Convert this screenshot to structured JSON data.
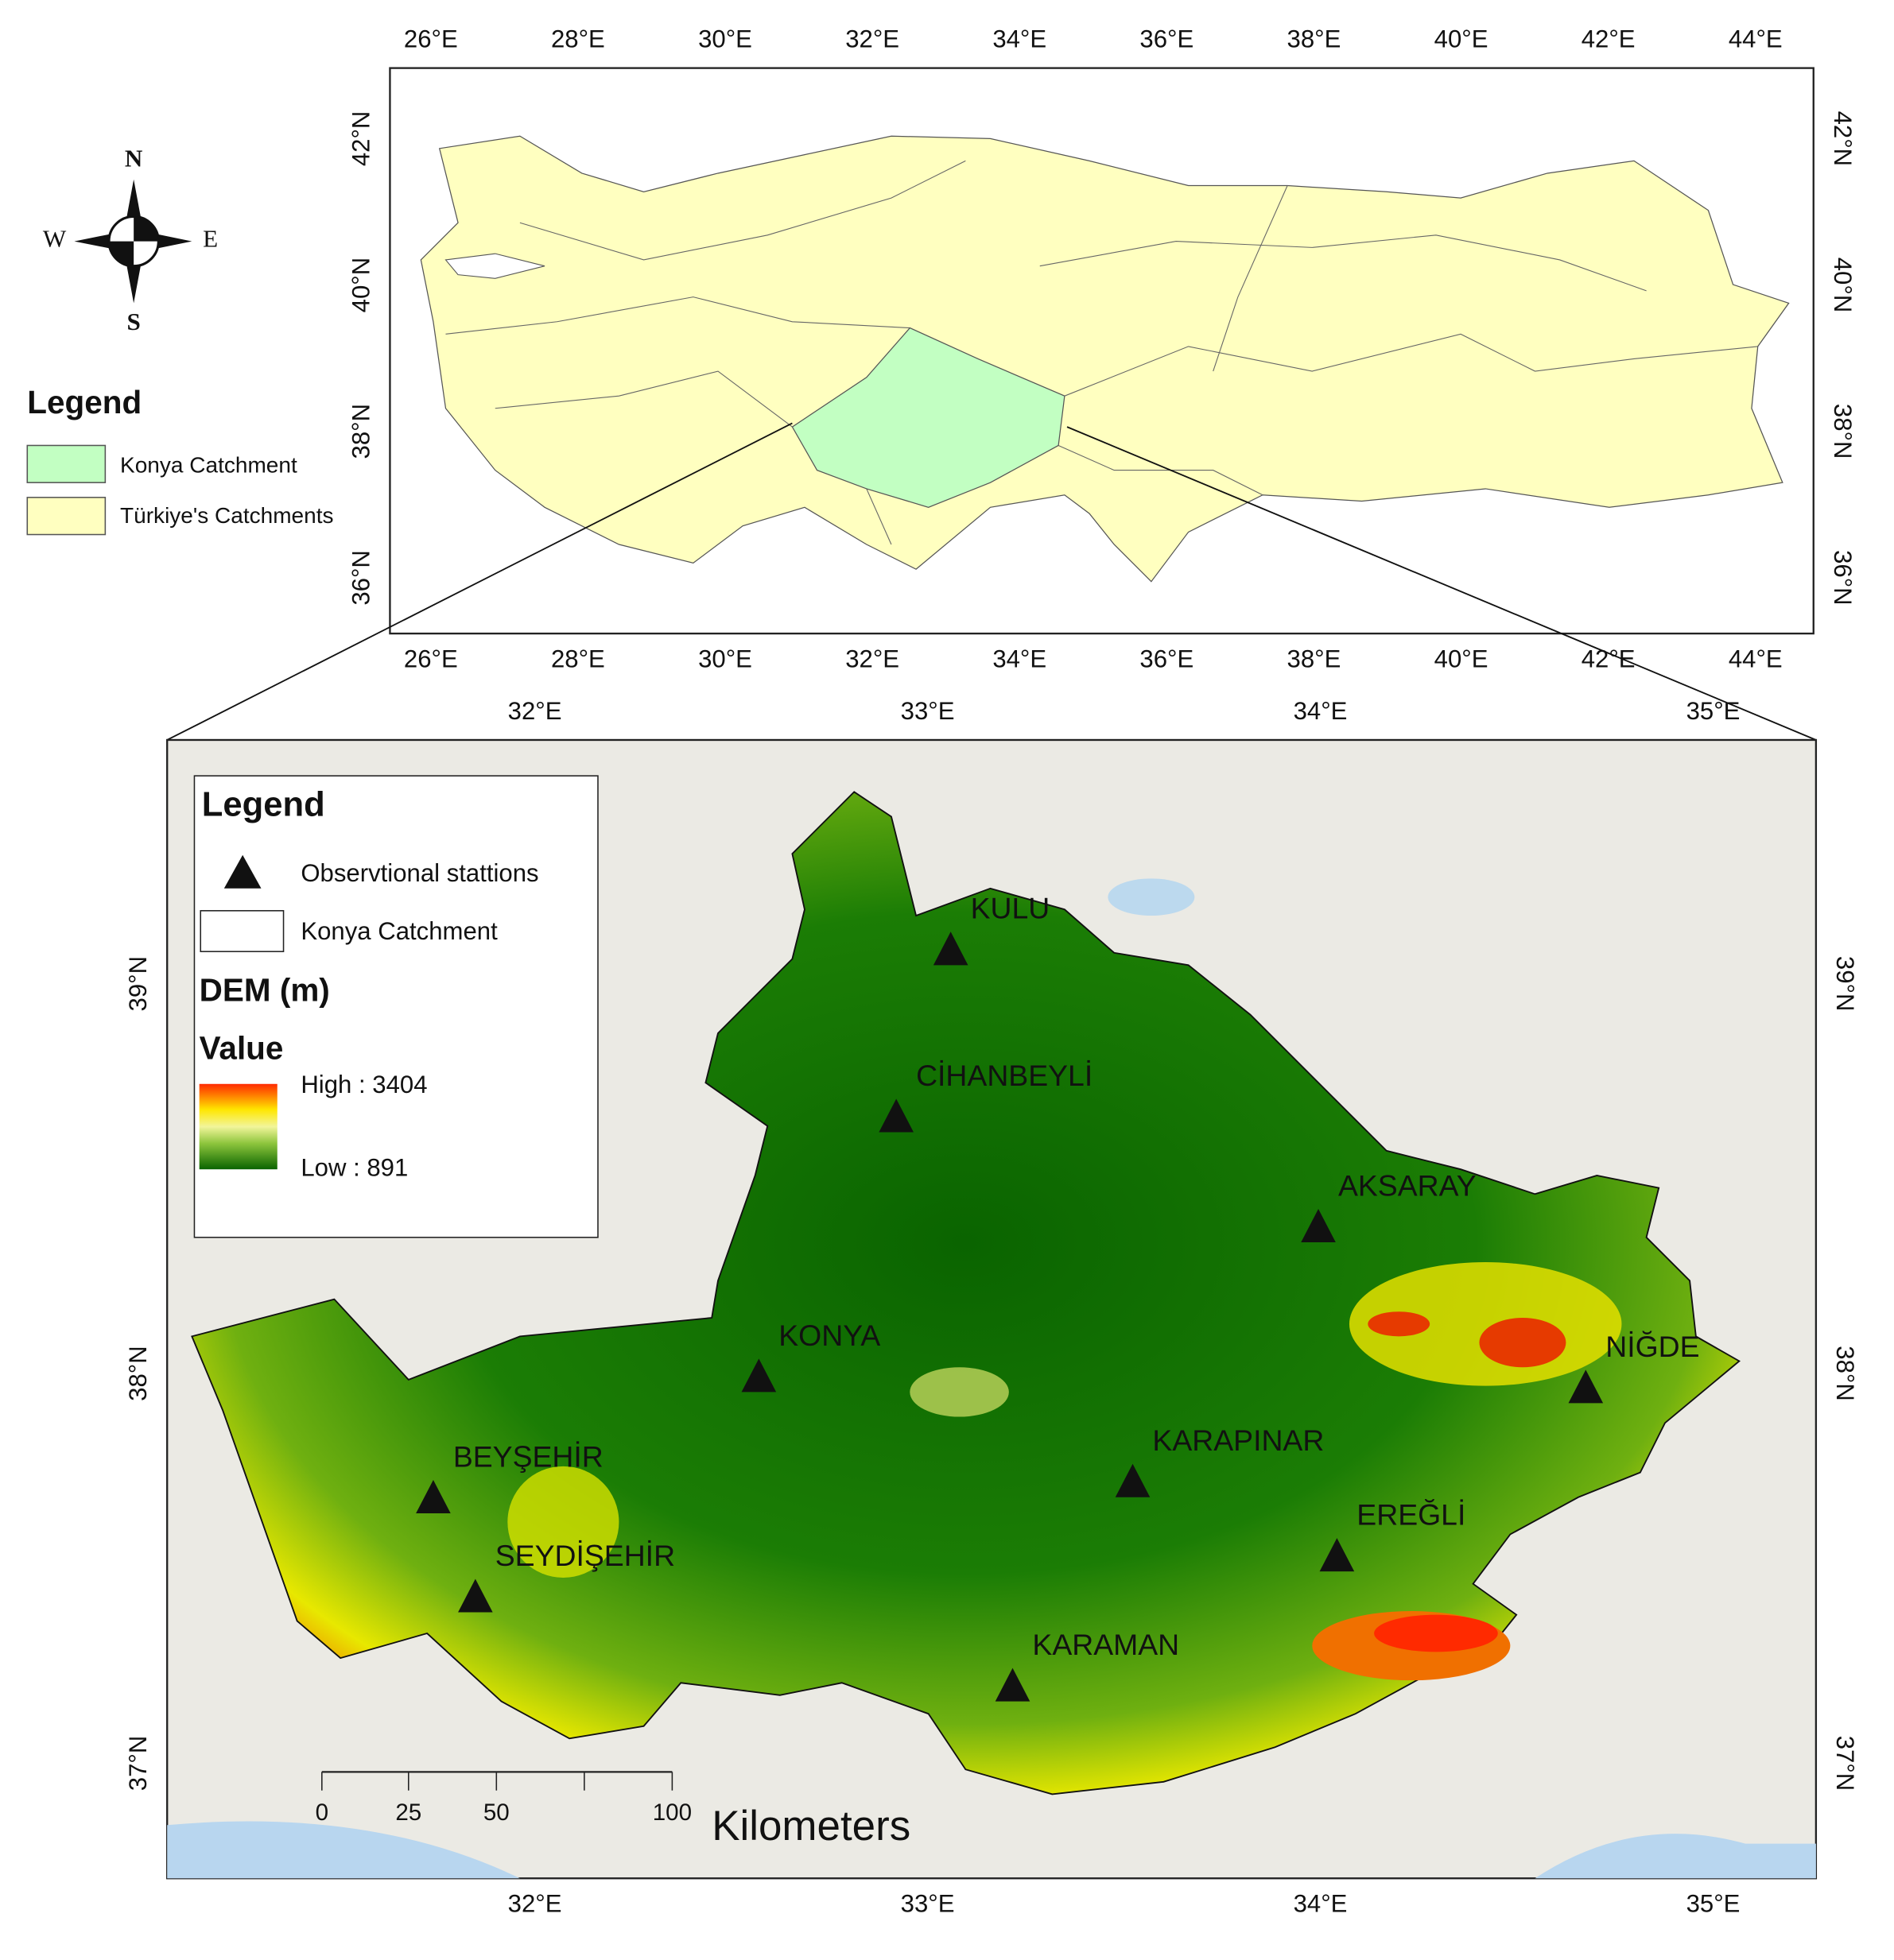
{
  "overview_map": {
    "x_ticks": [
      "26°E",
      "28°E",
      "30°E",
      "32°E",
      "34°E",
      "36°E",
      "38°E",
      "40°E",
      "42°E",
      "44°E"
    ],
    "y_ticks": [
      "42°N",
      "40°N",
      "38°N",
      "36°N"
    ],
    "legend": {
      "title": "Legend",
      "items": [
        "Konya Catchment",
        "Türkiye's Catchments"
      ]
    }
  },
  "compass": {
    "n": "N",
    "s": "S",
    "e": "E",
    "w": "W"
  },
  "detail_map": {
    "x_ticks": [
      "32°E",
      "33°E",
      "34°E",
      "35°E"
    ],
    "y_ticks": [
      "39°N",
      "38°N",
      "37°N"
    ],
    "legend": {
      "title": "Legend",
      "stations": "Observtional stattions",
      "catchment": "Konya Catchment",
      "dem_title": "DEM (m)",
      "value_title": "Value",
      "high": "High : 3404",
      "low": "Low : 891"
    },
    "stations": [
      "KULU",
      "CİHANBEYLİ",
      "AKSARAY",
      "KONYA",
      "NİĞDE",
      "BEYŞEHİR",
      "KARAPINAR",
      "EREĞLİ",
      "SEYDİŞEHİR",
      "KARAMAN"
    ],
    "scale_bar": {
      "labels": [
        "0",
        "25",
        "50",
        "100"
      ],
      "unit": "Kilometers"
    }
  }
}
